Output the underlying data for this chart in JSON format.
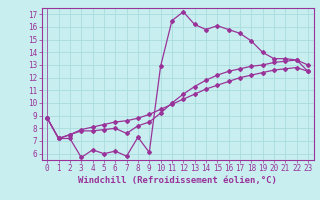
{
  "xlabel": "Windchill (Refroidissement éolien,°C)",
  "bg_color": "#c8eef0",
  "line_color": "#993399",
  "grid_color": "#aadddd",
  "xlim": [
    -0.5,
    23.5
  ],
  "ylim": [
    5.5,
    17.5
  ],
  "xticks": [
    0,
    1,
    2,
    3,
    4,
    5,
    6,
    7,
    8,
    9,
    10,
    11,
    12,
    13,
    14,
    15,
    16,
    17,
    18,
    19,
    20,
    21,
    22,
    23
  ],
  "yticks": [
    6,
    7,
    8,
    9,
    10,
    11,
    12,
    13,
    14,
    15,
    16,
    17
  ],
  "line1_x": [
    0,
    1,
    2,
    3,
    4,
    5,
    6,
    7,
    8,
    9,
    10,
    11,
    12,
    13,
    14,
    15,
    16,
    17,
    18,
    19,
    20,
    21,
    22,
    23
  ],
  "line1_y": [
    8.8,
    7.2,
    7.2,
    5.7,
    6.3,
    6.0,
    6.2,
    5.8,
    7.3,
    6.1,
    12.9,
    16.5,
    17.2,
    16.2,
    15.8,
    16.1,
    15.8,
    15.5,
    14.9,
    14.0,
    13.5,
    13.5,
    13.4,
    13.0
  ],
  "line2_x": [
    0,
    1,
    2,
    3,
    4,
    5,
    6,
    7,
    8,
    9,
    10,
    11,
    12,
    13,
    14,
    15,
    16,
    17,
    18,
    19,
    20,
    21,
    22,
    23
  ],
  "line2_y": [
    8.8,
    7.2,
    7.5,
    7.8,
    7.8,
    7.9,
    8.0,
    7.6,
    8.2,
    8.5,
    9.2,
    10.0,
    10.7,
    11.3,
    11.8,
    12.2,
    12.5,
    12.7,
    12.9,
    13.0,
    13.2,
    13.3,
    13.4,
    12.5
  ],
  "line3_x": [
    0,
    1,
    2,
    3,
    4,
    5,
    6,
    7,
    8,
    9,
    10,
    11,
    12,
    13,
    14,
    15,
    16,
    17,
    18,
    19,
    20,
    21,
    22,
    23
  ],
  "line3_y": [
    8.8,
    7.2,
    7.5,
    7.9,
    8.1,
    8.3,
    8.5,
    8.6,
    8.8,
    9.1,
    9.5,
    9.9,
    10.3,
    10.7,
    11.1,
    11.4,
    11.7,
    12.0,
    12.2,
    12.4,
    12.6,
    12.7,
    12.8,
    12.5
  ],
  "tick_fontsize": 5.5,
  "xlabel_fontsize": 6.5,
  "marker_size": 2.0,
  "line_width": 0.9
}
